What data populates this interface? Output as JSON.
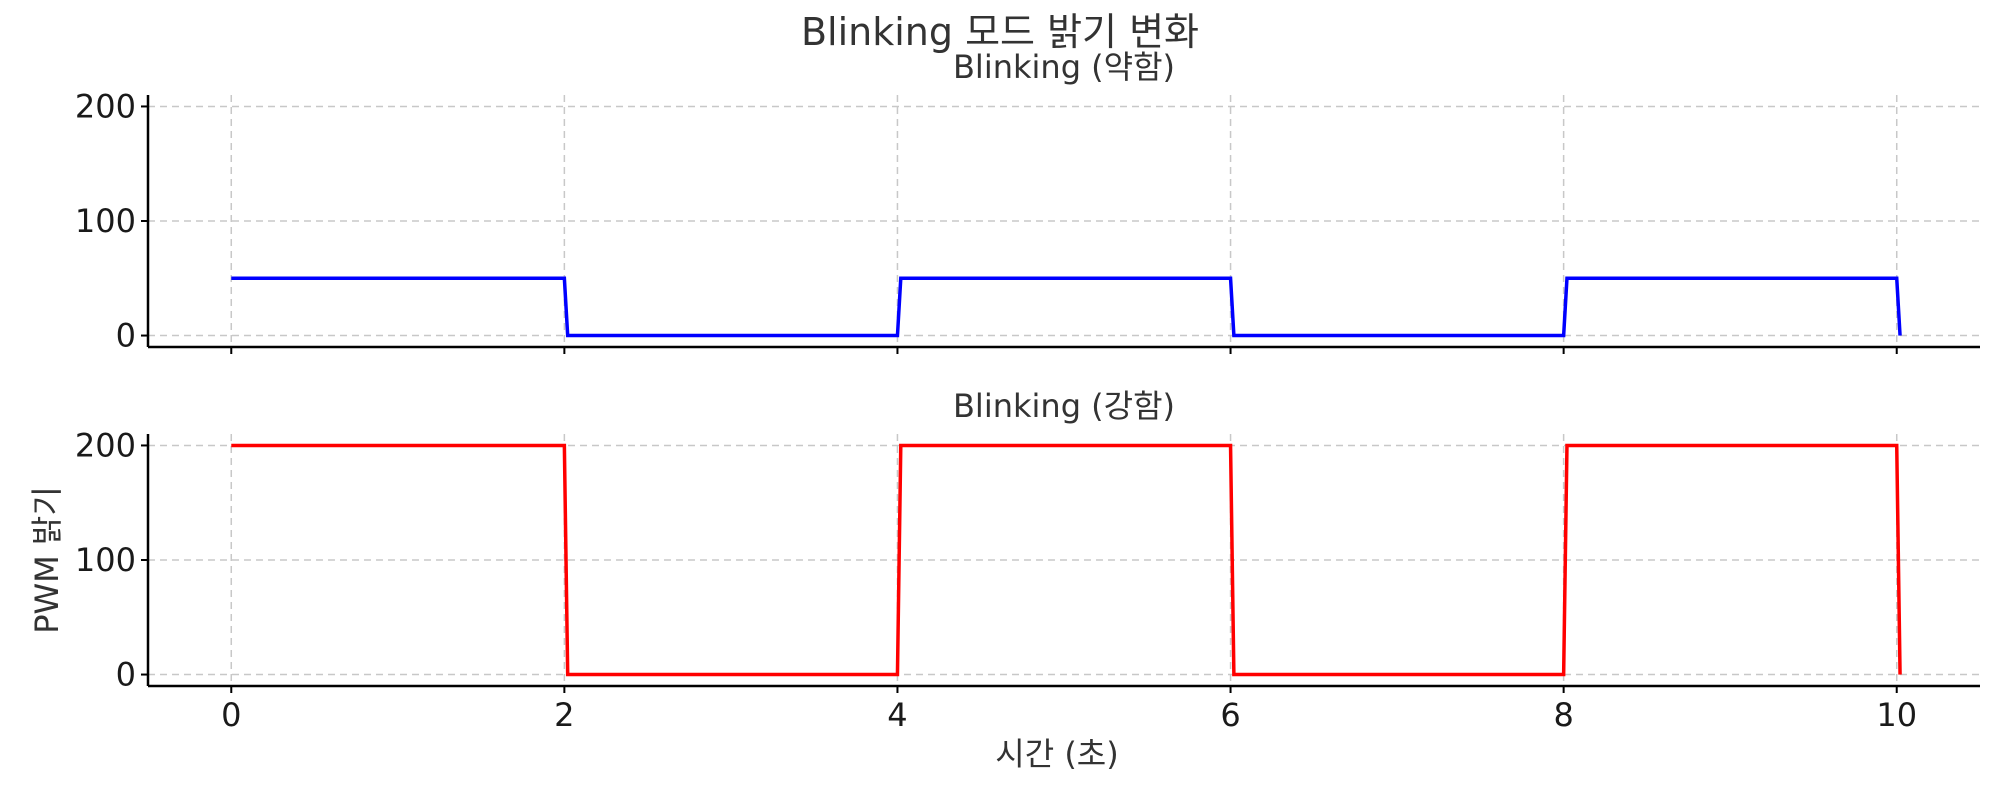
{
  "suptitle": "Blinking 모드 밝기 변화",
  "xlabel": "시간 (초)",
  "ylabel": "PWM 밝기",
  "chart_data": [
    {
      "type": "line",
      "title": "Blinking (약함)",
      "x": [
        0,
        2,
        2.02,
        4,
        4.02,
        6,
        6.02,
        8,
        8.02,
        10,
        10.02
      ],
      "series": [
        {
          "values": [
            50,
            50,
            0,
            0,
            50,
            50,
            0,
            0,
            50,
            50,
            0
          ],
          "color": "#0000ff"
        }
      ],
      "xlim": [
        -0.5,
        10.5
      ],
      "ylim": [
        -10,
        210
      ],
      "xticks": [
        0,
        2,
        4,
        6,
        8,
        10
      ],
      "yticks": [
        0,
        100,
        200
      ],
      "show_xtick_labels": false,
      "grid": true
    },
    {
      "type": "line",
      "title": "Blinking (강함)",
      "x": [
        0,
        2,
        2.02,
        4,
        4.02,
        6,
        6.02,
        8,
        8.02,
        10,
        10.02
      ],
      "series": [
        {
          "values": [
            200,
            200,
            0,
            0,
            200,
            200,
            0,
            0,
            200,
            200,
            0
          ],
          "color": "#ff0000"
        }
      ],
      "xlim": [
        -0.5,
        10.5
      ],
      "ylim": [
        -10,
        210
      ],
      "xticks": [
        0,
        2,
        4,
        6,
        8,
        10
      ],
      "yticks": [
        0,
        100,
        200
      ],
      "show_xtick_labels": true,
      "grid": true
    }
  ]
}
